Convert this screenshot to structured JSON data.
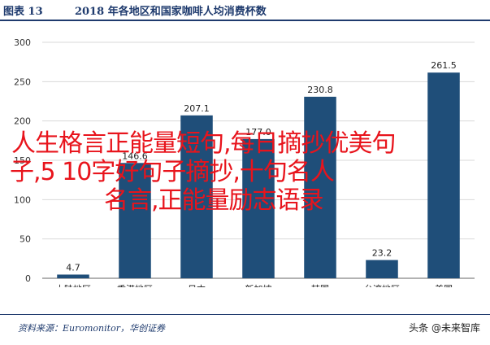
{
  "header": {
    "figure_no": "图表 13",
    "title": "2018 年各地区和国家咖啡人均消费杯数"
  },
  "overlay": {
    "line1": "人生格言正能量短句,每日摘抄优美句",
    "line2": "子,5 10字好句子摘抄,十句名人",
    "line3": "名言,正能量励志语录"
  },
  "footer": {
    "source": "资料来源：Euromonitor，华创证券",
    "watermark": "头条 @未来智库"
  },
  "chart_data": {
    "type": "bar",
    "categories": [
      "大陆地区",
      "香港地区",
      "日本",
      "新加坡",
      "韩国",
      "台湾地区",
      "美国"
    ],
    "values": [
      4.7,
      146.6,
      207.1,
      177.0,
      230.8,
      23.2,
      261.5
    ],
    "value_labels": [
      "4.7",
      "146.6",
      "207.1",
      "177.0",
      "230.8",
      "23.2",
      "261.5"
    ],
    "yticks": [
      "0",
      "50",
      "100",
      "150",
      "200",
      "250",
      "300"
    ],
    "ylim": [
      0,
      300
    ],
    "bar_color": "#1f4e79",
    "grid": true
  }
}
